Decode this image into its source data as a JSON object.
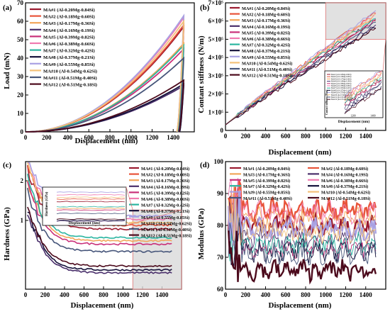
{
  "series_meta": [
    {
      "name": "MA#1",
      "comp": "(Al-0.20Mg-0.84Si)",
      "color": "#9b1b30"
    },
    {
      "name": "MA#2",
      "comp": "(Al-0.18Mg-0.60Si)",
      "color": "#e8543a"
    },
    {
      "name": "MA#3",
      "comp": "(Al-0.17Mg-0.36Si)",
      "color": "#f2a65a"
    },
    {
      "name": "MA#4",
      "comp": "(Al-0.16Mg-0.19Si)",
      "color": "#4a2f6b"
    },
    {
      "name": "MA#5",
      "comp": "(Al-0.39Mg-0.82Si)",
      "color": "#c9307a"
    },
    {
      "name": "MA#6",
      "comp": "(Al-0.38Mg-0.66Si)",
      "color": "#f07ab0"
    },
    {
      "name": "MA#7",
      "comp": "(Al-0.32Mg-0.42Si)",
      "color": "#2bb5a0"
    },
    {
      "name": "MA#8",
      "comp": "(Al-0.37Mg-0.21Si)",
      "color": "#15113a"
    },
    {
      "name": "MA#9",
      "comp": "(Al-0.55Mg-0.85Si)",
      "color": "#a9a2e3"
    },
    {
      "name": "MA#10",
      "comp": "(Al-0.54Mg-0.62Si)",
      "color": "#f4c27a"
    },
    {
      "name": "MA#11",
      "comp": "(Al-0.51Mg-0.40Si)",
      "color": "#46557a"
    },
    {
      "name": "MA#12",
      "comp": "(Al-0.51Mg-0.18Si)",
      "color": "#4c0a1c"
    }
  ],
  "chart_data": [
    {
      "panel": "(a)",
      "type": "line",
      "xlabel": "Displacement (nm)",
      "ylabel": "Load (mN)",
      "xlim": [
        0,
        1600
      ],
      "ylim": [
        0,
        70
      ],
      "xticks": [
        0,
        200,
        400,
        600,
        800,
        1000,
        1200,
        1400
      ],
      "yticks": [
        0,
        10,
        20,
        30,
        40,
        50,
        60,
        70
      ],
      "legend_placement": "top-left",
      "curve_model": "loading curve y = Pmax*(x/hmax)^2 then unloading to residual depth",
      "series": [
        {
          "name": "MA#1",
          "max_depth": 1500,
          "max_load": 57,
          "residual_depth": 1440
        },
        {
          "name": "MA#2",
          "max_depth": 1500,
          "max_load": 58,
          "residual_depth": 1440
        },
        {
          "name": "MA#3",
          "max_depth": 1500,
          "max_load": 48,
          "residual_depth": 1445
        },
        {
          "name": "MA#4",
          "max_depth": 1500,
          "max_load": 25,
          "residual_depth": 1460
        },
        {
          "name": "MA#5",
          "max_depth": 1500,
          "max_load": 45,
          "residual_depth": 1445
        },
        {
          "name": "MA#6",
          "max_depth": 1500,
          "max_load": 62,
          "residual_depth": 1435
        },
        {
          "name": "MA#7",
          "max_depth": 1500,
          "max_load": 47,
          "residual_depth": 1445
        },
        {
          "name": "MA#8",
          "max_depth": 1500,
          "max_load": 26,
          "residual_depth": 1460
        },
        {
          "name": "MA#9",
          "max_depth": 1500,
          "max_load": 63,
          "residual_depth": 1435
        },
        {
          "name": "MA#10",
          "max_depth": 1500,
          "max_load": 60,
          "residual_depth": 1435
        },
        {
          "name": "MA#11",
          "max_depth": 1500,
          "max_load": 40,
          "residual_depth": 1450
        },
        {
          "name": "MA#12",
          "max_depth": 1500,
          "max_load": 28,
          "residual_depth": 1455
        }
      ]
    },
    {
      "panel": "(b)",
      "type": "line",
      "xlabel": "Displacement (nm)",
      "ylabel": "Contant stiffness (N/m)",
      "xlim": [
        0,
        1600
      ],
      "ylim": [
        0,
        700000
      ],
      "xticks": [
        0,
        200,
        400,
        600,
        800,
        1000,
        1200,
        1400
      ],
      "yticks": [
        0,
        100000,
        200000,
        300000,
        400000,
        500000,
        600000,
        700000
      ],
      "ytick_labels": [
        "0",
        "1×10⁵",
        "2×10⁵",
        "3×10⁵",
        "4×10⁵",
        "5×10⁵",
        "6×10⁵",
        "7×10⁵"
      ],
      "legend_placement": "top-left",
      "highlight_region": {
        "x": [
          1000,
          1600
        ],
        "y": [
          500000,
          700000
        ]
      },
      "inset": {
        "xlabel": "Displacement (nm)",
        "ylabel": "Contact stiffness (N/m)",
        "x_range": [
          1000,
          1500
        ],
        "xticks": [
          "1200",
          "1400"
        ]
      },
      "series": [
        {
          "name": "MA#1",
          "final": 610000
        },
        {
          "name": "MA#2",
          "final": 650000
        },
        {
          "name": "MA#3",
          "final": 630000
        },
        {
          "name": "MA#4",
          "final": 580000
        },
        {
          "name": "MA#5",
          "final": 600000
        },
        {
          "name": "MA#6",
          "final": 640000
        },
        {
          "name": "MA#7",
          "final": 620000
        },
        {
          "name": "MA#8",
          "final": 565000
        },
        {
          "name": "MA#9",
          "final": 655000
        },
        {
          "name": "MA#10",
          "final": 635000
        },
        {
          "name": "MA#11",
          "final": 590000
        },
        {
          "name": "MA#12",
          "final": 560000
        }
      ]
    },
    {
      "panel": "(c)",
      "type": "line",
      "xlabel": "Displacement (nm)",
      "ylabel": "Hardness (GPa)",
      "xlim": [
        0,
        1600
      ],
      "ylim": [
        0.3,
        2.8
      ],
      "log_scale_y": true,
      "xticks": [
        0,
        200,
        400,
        600,
        800,
        1000,
        1200,
        1400
      ],
      "yticks": [
        1,
        2
      ],
      "legend_placement": "top-right",
      "highlight_region": {
        "x": [
          1100,
          1600
        ],
        "y": [
          0.3,
          1.2
        ]
      },
      "inset": {
        "xlabel": "Displacement (nm)",
        "ylabel": "Hardness (GPa)"
      },
      "series": [
        {
          "name": "MA#1",
          "plateau": 0.86
        },
        {
          "name": "MA#2",
          "plateau": 0.92
        },
        {
          "name": "MA#3",
          "plateau": 0.7
        },
        {
          "name": "MA#4",
          "plateau": 0.4
        },
        {
          "name": "MA#5",
          "plateau": 0.66
        },
        {
          "name": "MA#6",
          "plateau": 1.02
        },
        {
          "name": "MA#7",
          "plateau": 0.74
        },
        {
          "name": "MA#8",
          "plateau": 0.42
        },
        {
          "name": "MA#9",
          "plateau": 1.08
        },
        {
          "name": "MA#10",
          "plateau": 0.96
        },
        {
          "name": "MA#11",
          "plateau": 0.58
        },
        {
          "name": "MA#12",
          "plateau": 0.45
        }
      ]
    },
    {
      "panel": "(d)",
      "type": "line",
      "xlabel": "Displacement (nm)",
      "ylabel": "Modulus (GPa)",
      "xlim": [
        0,
        1600
      ],
      "ylim": [
        60,
        100
      ],
      "xticks": [
        0,
        200,
        400,
        600,
        800,
        1000,
        1200,
        1400
      ],
      "yticks": [
        60,
        70,
        80,
        90,
        100
      ],
      "legend_placement": "top",
      "series": [
        {
          "name": "MA#1",
          "level": 80,
          "bold": true
        },
        {
          "name": "MA#2",
          "level": 85,
          "bold": true
        },
        {
          "name": "MA#3",
          "level": 82,
          "bold": false
        },
        {
          "name": "MA#4",
          "level": 76,
          "bold": false
        },
        {
          "name": "MA#5",
          "level": 73,
          "bold": false
        },
        {
          "name": "MA#6",
          "level": 84,
          "bold": false
        },
        {
          "name": "MA#7",
          "level": 74,
          "bold": false
        },
        {
          "name": "MA#8",
          "level": 72,
          "bold": false
        },
        {
          "name": "MA#9",
          "level": 79,
          "bold": true
        },
        {
          "name": "MA#10",
          "level": 78,
          "bold": false
        },
        {
          "name": "MA#11",
          "level": 71,
          "bold": false
        },
        {
          "name": "MA#12",
          "level": 66,
          "bold": true
        }
      ]
    }
  ]
}
